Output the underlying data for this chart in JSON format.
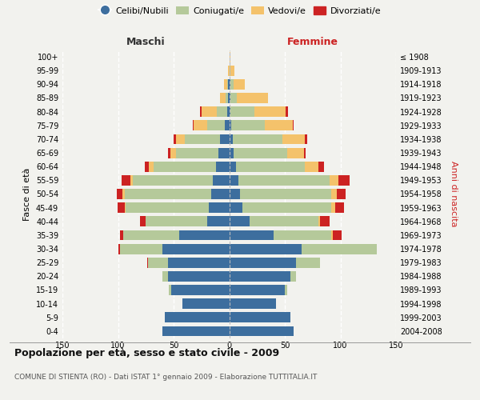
{
  "age_groups": [
    "0-4",
    "5-9",
    "10-14",
    "15-19",
    "20-24",
    "25-29",
    "30-34",
    "35-39",
    "40-44",
    "45-49",
    "50-54",
    "55-59",
    "60-64",
    "65-69",
    "70-74",
    "75-79",
    "80-84",
    "85-89",
    "90-94",
    "95-99",
    "100+"
  ],
  "birth_years": [
    "2004-2008",
    "1999-2003",
    "1994-1998",
    "1989-1993",
    "1984-1988",
    "1979-1983",
    "1974-1978",
    "1969-1973",
    "1964-1968",
    "1959-1963",
    "1954-1958",
    "1949-1953",
    "1944-1948",
    "1939-1943",
    "1934-1938",
    "1929-1933",
    "1924-1928",
    "1919-1923",
    "1914-1918",
    "1909-1913",
    "≤ 1908"
  ],
  "colors": {
    "celibi": "#3d6e9e",
    "coniugati": "#b5c99a",
    "vedovi": "#f4c26b",
    "divorziati": "#cc2222"
  },
  "maschi": {
    "celibi": [
      60,
      58,
      42,
      52,
      55,
      55,
      60,
      45,
      20,
      18,
      16,
      15,
      12,
      10,
      8,
      4,
      2,
      1,
      1,
      0,
      0
    ],
    "coniugati": [
      0,
      0,
      0,
      2,
      5,
      18,
      38,
      50,
      55,
      75,
      78,
      72,
      56,
      38,
      32,
      16,
      9,
      2,
      1,
      0,
      0
    ],
    "vedovi": [
      0,
      0,
      0,
      0,
      0,
      0,
      0,
      0,
      0,
      1,
      2,
      2,
      4,
      5,
      8,
      12,
      14,
      5,
      3,
      1,
      0
    ],
    "divorziati": [
      0,
      0,
      0,
      0,
      0,
      1,
      2,
      3,
      5,
      6,
      5,
      8,
      4,
      2,
      2,
      1,
      1,
      0,
      0,
      0,
      0
    ]
  },
  "femmine": {
    "celibi": [
      58,
      55,
      42,
      50,
      55,
      60,
      65,
      40,
      18,
      12,
      10,
      8,
      6,
      4,
      3,
      2,
      1,
      1,
      1,
      0,
      0
    ],
    "coniugati": [
      0,
      0,
      0,
      2,
      5,
      22,
      68,
      52,
      62,
      80,
      82,
      82,
      62,
      48,
      45,
      30,
      22,
      6,
      3,
      1,
      0
    ],
    "vedovi": [
      0,
      0,
      0,
      0,
      0,
      0,
      0,
      1,
      2,
      3,
      5,
      8,
      12,
      15,
      20,
      25,
      28,
      28,
      10,
      4,
      1
    ],
    "divorziati": [
      0,
      0,
      0,
      0,
      0,
      0,
      0,
      8,
      8,
      8,
      8,
      10,
      5,
      2,
      2,
      1,
      2,
      0,
      0,
      0,
      0
    ]
  },
  "title": "Popolazione per età, sesso e stato civile - 2009",
  "subtitle": "COMUNE DI STIENTA (RO) - Dati ISTAT 1° gennaio 2009 - Elaborazione TUTTITALIA.IT",
  "xlabel_left": "Maschi",
  "xlabel_right": "Femmine",
  "ylabel_left": "Fasce di età",
  "ylabel_right": "Anni di nascita",
  "legend_labels": [
    "Celibi/Nubili",
    "Coniugati/e",
    "Vedovi/e",
    "Divorziati/e"
  ],
  "xlim": 150,
  "background_color": "#f2f2ee",
  "bar_height": 0.75,
  "fig_width": 6.0,
  "fig_height": 5.0,
  "dpi": 100
}
